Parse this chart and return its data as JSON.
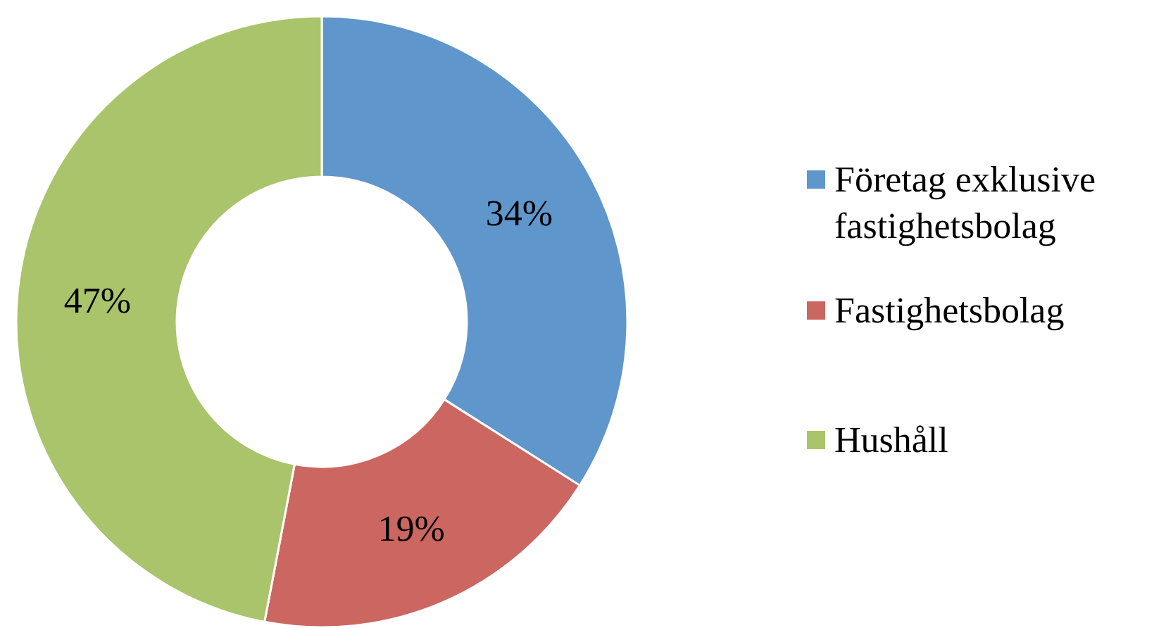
{
  "chart_data": {
    "type": "donut",
    "categories": [
      "Företag exklusive fastighetsbolag",
      "Fastighetsbolag",
      "Hushåll"
    ],
    "values": [
      34,
      19,
      47
    ],
    "colors": [
      "#5f96cb",
      "#cc6660",
      "#a9c46a"
    ],
    "value_labels": [
      "34%",
      "19%",
      "47%"
    ],
    "legend": "right"
  }
}
